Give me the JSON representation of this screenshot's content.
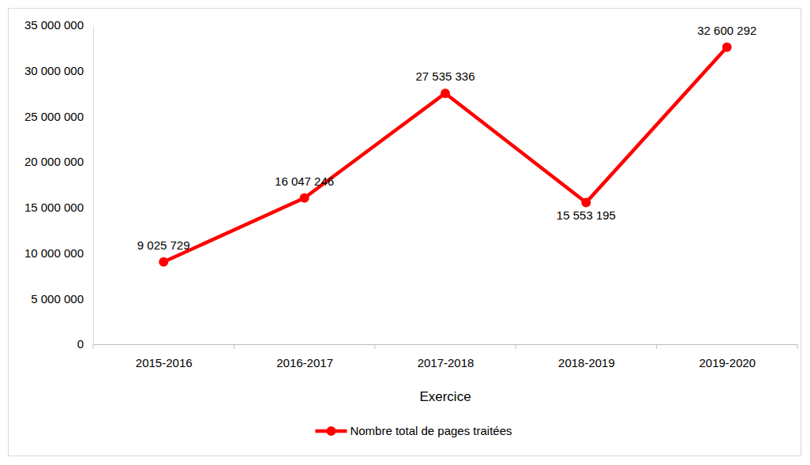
{
  "chart_data": {
    "type": "line",
    "x_label": "Exercice",
    "categories": [
      "2015-2016",
      "2016-2017",
      "2017-2018",
      "2018-2019",
      "2019-2020"
    ],
    "series": [
      {
        "name": "Nombre total de pages traitées",
        "color": "#ff0000",
        "marker": "circle",
        "line_style": "solid",
        "values": [
          9025729,
          16047246,
          27535336,
          15553195,
          32600292
        ],
        "value_labels": [
          "9 025 729",
          "16 047 246",
          "27 535 336",
          "15 553 195",
          "32 600 292"
        ]
      }
    ],
    "ylim": [
      0,
      35000000
    ],
    "yticks": [
      0,
      {
        "value": 5000000,
        "label": "5 000 000"
      },
      {
        "value": 10000000,
        "label": "10 000 000"
      },
      {
        "value": 15000000,
        "label": "15 000 000"
      },
      {
        "value": 20000000,
        "label": "20 000 000"
      },
      {
        "value": 25000000,
        "label": "25 000 000"
      },
      {
        "value": 30000000,
        "label": "30 000 000"
      },
      {
        "value": 35000000,
        "label": "35 000 000"
      }
    ],
    "grid": false,
    "legend": "bottom",
    "data_labels": true
  }
}
